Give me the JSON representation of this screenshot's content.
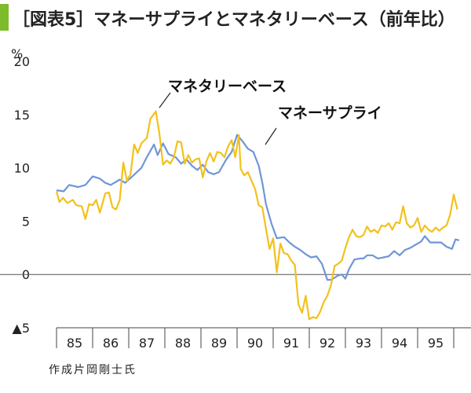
{
  "title": "［図表5］マネーサプライとマネタリーベース（前年比）",
  "source": "作成片岡剛士氏",
  "chart_data": {
    "type": "line",
    "unit_label": "%",
    "ylim": [
      -5,
      20
    ],
    "y_ticks": [
      {
        "v": 20,
        "label": "20"
      },
      {
        "v": 15,
        "label": "15"
      },
      {
        "v": 10,
        "label": "10"
      },
      {
        "v": 5,
        "label": "5"
      },
      {
        "v": 0,
        "label": "0"
      },
      {
        "v": -5,
        "label": "▲5"
      }
    ],
    "x_range": [
      1985,
      1996
    ],
    "x_ticks": [
      "85",
      "86",
      "87",
      "88",
      "89",
      "90",
      "91",
      "92",
      "93",
      "94",
      "95"
    ],
    "grid": false,
    "series": [
      {
        "name": "マネーサプライ",
        "color": "#6f96d8",
        "points": [
          [
            1985.0,
            7.9
          ],
          [
            1985.2,
            7.8
          ],
          [
            1985.35,
            8.4
          ],
          [
            1985.6,
            8.2
          ],
          [
            1985.8,
            8.4
          ],
          [
            1986.0,
            9.2
          ],
          [
            1986.2,
            9.0
          ],
          [
            1986.35,
            8.6
          ],
          [
            1986.5,
            8.4
          ],
          [
            1986.75,
            8.9
          ],
          [
            1986.9,
            8.6
          ],
          [
            1987.1,
            9.2
          ],
          [
            1987.35,
            10.0
          ],
          [
            1987.5,
            11.0
          ],
          [
            1987.6,
            11.6
          ],
          [
            1987.7,
            12.2
          ],
          [
            1987.8,
            11.2
          ],
          [
            1987.95,
            12.3
          ],
          [
            1988.1,
            11.3
          ],
          [
            1988.3,
            11.0
          ],
          [
            1988.45,
            10.4
          ],
          [
            1988.6,
            10.8
          ],
          [
            1988.75,
            10.2
          ],
          [
            1988.9,
            9.8
          ],
          [
            1989.05,
            10.3
          ],
          [
            1989.2,
            9.6
          ],
          [
            1989.35,
            9.4
          ],
          [
            1989.5,
            9.6
          ],
          [
            1989.7,
            10.8
          ],
          [
            1989.85,
            11.5
          ],
          [
            1990.0,
            13.1
          ],
          [
            1990.15,
            12.5
          ],
          [
            1990.3,
            11.8
          ],
          [
            1990.45,
            11.5
          ],
          [
            1990.6,
            10.2
          ],
          [
            1990.7,
            8.6
          ],
          [
            1990.8,
            6.6
          ],
          [
            1990.95,
            4.8
          ],
          [
            1991.1,
            3.4
          ],
          [
            1991.3,
            3.5
          ],
          [
            1991.45,
            3.0
          ],
          [
            1991.6,
            2.6
          ],
          [
            1991.75,
            2.3
          ],
          [
            1991.9,
            1.9
          ],
          [
            1992.05,
            1.6
          ],
          [
            1992.2,
            1.7
          ],
          [
            1992.35,
            1.0
          ],
          [
            1992.5,
            -0.5
          ],
          [
            1992.6,
            -0.5
          ],
          [
            1992.7,
            -0.3
          ],
          [
            1992.8,
            -0.1
          ],
          [
            1992.9,
            0.0
          ],
          [
            1993.0,
            -0.4
          ],
          [
            1993.1,
            0.5
          ],
          [
            1993.25,
            1.4
          ],
          [
            1993.4,
            1.5
          ],
          [
            1993.5,
            1.5
          ],
          [
            1993.6,
            1.8
          ],
          [
            1993.75,
            1.8
          ],
          [
            1993.9,
            1.5
          ],
          [
            1994.05,
            1.6
          ],
          [
            1994.2,
            1.7
          ],
          [
            1994.35,
            2.2
          ],
          [
            1994.5,
            1.8
          ],
          [
            1994.65,
            2.3
          ],
          [
            1994.8,
            2.5
          ],
          [
            1994.95,
            2.8
          ],
          [
            1995.1,
            3.1
          ],
          [
            1995.2,
            3.6
          ],
          [
            1995.35,
            3.0
          ],
          [
            1995.5,
            3.0
          ],
          [
            1995.65,
            3.0
          ],
          [
            1995.8,
            2.6
          ],
          [
            1995.95,
            2.4
          ],
          [
            1996.05,
            3.3
          ],
          [
            1996.15,
            3.2
          ]
        ]
      },
      {
        "name": "マネタリーベース",
        "color": "#f3c11b",
        "points": [
          [
            1985.0,
            7.8
          ],
          [
            1985.08,
            6.8
          ],
          [
            1985.18,
            7.2
          ],
          [
            1985.3,
            6.7
          ],
          [
            1985.45,
            7.0
          ],
          [
            1985.55,
            6.5
          ],
          [
            1985.7,
            6.4
          ],
          [
            1985.8,
            5.2
          ],
          [
            1985.9,
            6.6
          ],
          [
            1986.0,
            6.5
          ],
          [
            1986.1,
            7.0
          ],
          [
            1986.2,
            5.8
          ],
          [
            1986.35,
            7.6
          ],
          [
            1986.45,
            7.7
          ],
          [
            1986.55,
            6.3
          ],
          [
            1986.65,
            6.1
          ],
          [
            1986.75,
            7.0
          ],
          [
            1986.85,
            10.5
          ],
          [
            1986.95,
            8.8
          ],
          [
            1987.05,
            9.4
          ],
          [
            1987.15,
            12.2
          ],
          [
            1987.25,
            11.4
          ],
          [
            1987.35,
            12.3
          ],
          [
            1987.5,
            12.8
          ],
          [
            1987.6,
            14.6
          ],
          [
            1987.75,
            15.3
          ],
          [
            1987.85,
            13.2
          ],
          [
            1987.95,
            10.3
          ],
          [
            1988.05,
            10.7
          ],
          [
            1988.15,
            10.4
          ],
          [
            1988.25,
            11.0
          ],
          [
            1988.35,
            12.5
          ],
          [
            1988.45,
            12.4
          ],
          [
            1988.55,
            10.4
          ],
          [
            1988.65,
            11.2
          ],
          [
            1988.75,
            10.5
          ],
          [
            1988.85,
            10.8
          ],
          [
            1988.95,
            10.9
          ],
          [
            1989.05,
            9.1
          ],
          [
            1989.15,
            10.6
          ],
          [
            1989.25,
            11.4
          ],
          [
            1989.35,
            10.6
          ],
          [
            1989.45,
            11.5
          ],
          [
            1989.55,
            11.4
          ],
          [
            1989.65,
            11.0
          ],
          [
            1989.75,
            12.0
          ],
          [
            1989.85,
            12.6
          ],
          [
            1989.95,
            11.0
          ],
          [
            1990.05,
            13.1
          ],
          [
            1990.1,
            9.9
          ],
          [
            1990.2,
            9.3
          ],
          [
            1990.3,
            9.6
          ],
          [
            1990.4,
            8.8
          ],
          [
            1990.5,
            8.0
          ],
          [
            1990.6,
            6.5
          ],
          [
            1990.7,
            6.3
          ],
          [
            1990.8,
            4.3
          ],
          [
            1990.9,
            2.4
          ],
          [
            1991.0,
            3.4
          ],
          [
            1991.1,
            0.2
          ],
          [
            1991.2,
            2.9
          ],
          [
            1991.3,
            2.0
          ],
          [
            1991.4,
            1.9
          ],
          [
            1991.5,
            1.3
          ],
          [
            1991.6,
            0.9
          ],
          [
            1991.7,
            -2.8
          ],
          [
            1991.8,
            -3.6
          ],
          [
            1991.9,
            -2.0
          ],
          [
            1992.0,
            -4.2
          ],
          [
            1992.1,
            -4.0
          ],
          [
            1992.2,
            -4.1
          ],
          [
            1992.3,
            -3.5
          ],
          [
            1992.4,
            -2.6
          ],
          [
            1992.5,
            -2.0
          ],
          [
            1992.6,
            -1.0
          ],
          [
            1992.7,
            0.8
          ],
          [
            1992.8,
            1.0
          ],
          [
            1992.9,
            1.3
          ],
          [
            1993.0,
            2.5
          ],
          [
            1993.1,
            3.5
          ],
          [
            1993.2,
            4.2
          ],
          [
            1993.3,
            3.6
          ],
          [
            1993.4,
            3.5
          ],
          [
            1993.5,
            3.7
          ],
          [
            1993.6,
            4.5
          ],
          [
            1993.7,
            4.0
          ],
          [
            1993.8,
            4.2
          ],
          [
            1993.9,
            3.9
          ],
          [
            1994.0,
            4.6
          ],
          [
            1994.1,
            4.5
          ],
          [
            1994.2,
            4.8
          ],
          [
            1994.3,
            4.2
          ],
          [
            1994.4,
            4.9
          ],
          [
            1994.5,
            4.8
          ],
          [
            1994.6,
            6.4
          ],
          [
            1994.7,
            4.8
          ],
          [
            1994.8,
            4.4
          ],
          [
            1994.9,
            4.6
          ],
          [
            1995.0,
            5.3
          ],
          [
            1995.1,
            4.0
          ],
          [
            1995.2,
            4.6
          ],
          [
            1995.3,
            4.2
          ],
          [
            1995.4,
            4.0
          ],
          [
            1995.5,
            4.4
          ],
          [
            1995.6,
            4.1
          ],
          [
            1995.7,
            4.4
          ],
          [
            1995.8,
            4.6
          ],
          [
            1995.9,
            5.6
          ],
          [
            1996.0,
            7.5
          ],
          [
            1996.1,
            6.1
          ]
        ]
      }
    ]
  }
}
